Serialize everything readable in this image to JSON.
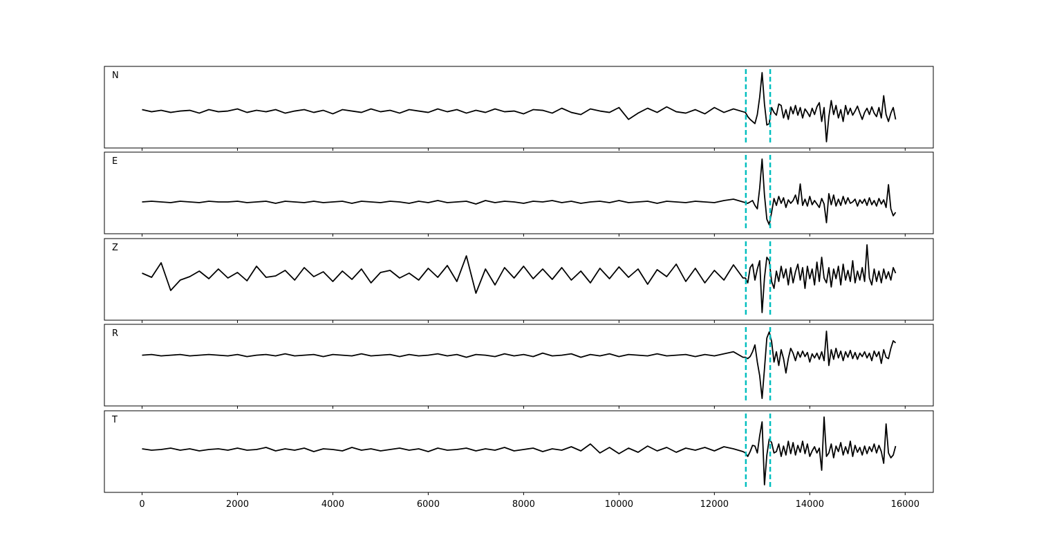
{
  "chart_data": {
    "type": "line",
    "x": [
      0,
      200,
      400,
      600,
      800,
      1000,
      1200,
      1400,
      1600,
      1800,
      2000,
      2200,
      2400,
      2600,
      2800,
      3000,
      3200,
      3400,
      3600,
      3800,
      4000,
      4200,
      4400,
      4600,
      4800,
      5000,
      5200,
      5400,
      5600,
      5800,
      6000,
      6200,
      6400,
      6600,
      6800,
      7000,
      7200,
      7400,
      7600,
      7800,
      8000,
      8200,
      8400,
      8600,
      8800,
      9000,
      9200,
      9400,
      9600,
      9800,
      10000,
      10200,
      10400,
      10600,
      10800,
      11000,
      11200,
      11400,
      11600,
      11800,
      12000,
      12200,
      12400,
      12600,
      12650,
      12700,
      12750,
      12800,
      12850,
      12900,
      12950,
      13000,
      13050,
      13100,
      13150,
      13200,
      13250,
      13300,
      13350,
      13400,
      13450,
      13500,
      13550,
      13600,
      13650,
      13700,
      13750,
      13800,
      13850,
      13900,
      13950,
      14000,
      14050,
      14100,
      14150,
      14200,
      14250,
      14300,
      14350,
      14400,
      14450,
      14500,
      14550,
      14600,
      14650,
      14700,
      14750,
      14800,
      14850,
      14900,
      14950,
      15000,
      15050,
      15100,
      15150,
      15200,
      15250,
      15300,
      15350,
      15400,
      15450,
      15500,
      15550,
      15600,
      15650,
      15700,
      15750,
      15800
    ],
    "xlim": [
      -790,
      16590
    ],
    "xticks": [
      0,
      2000,
      4000,
      6000,
      8000,
      10000,
      12000,
      14000,
      16000
    ],
    "vlines": {
      "values": [
        12660,
        13170
      ],
      "color": "#00bfbf"
    },
    "series": [
      {
        "name": "N",
        "color": "#000000",
        "ylim": [
          -53,
          64
        ],
        "values": [
          2,
          -1,
          1,
          -2,
          0,
          1,
          -3,
          2,
          -1,
          0,
          3,
          -2,
          1,
          -1,
          2,
          -3,
          0,
          2,
          -2,
          1,
          -4,
          2,
          0,
          -2,
          3,
          -1,
          1,
          -3,
          2,
          0,
          -2,
          3,
          -1,
          2,
          -3,
          1,
          -2,
          3,
          -1,
          0,
          -4,
          2,
          1,
          -3,
          4,
          -2,
          -5,
          3,
          0,
          -2,
          5,
          -12,
          -3,
          4,
          -2,
          6,
          -1,
          -3,
          2,
          -4,
          5,
          -2,
          3,
          -1,
          -2,
          -8,
          -12,
          -15,
          -18,
          -5,
          20,
          55,
          10,
          -20,
          -18,
          5,
          -2,
          -6,
          10,
          8,
          -10,
          2,
          -12,
          6,
          -4,
          8,
          -6,
          5,
          -10,
          3,
          -2,
          -8,
          4,
          -5,
          6,
          12,
          -15,
          5,
          -44,
          -8,
          15,
          -5,
          8,
          -10,
          2,
          -15,
          8,
          -5,
          4,
          -6,
          0,
          7,
          -3,
          -12,
          -2,
          4,
          -5,
          6,
          -3,
          -8,
          5,
          -10,
          22,
          -5,
          -15,
          -3,
          5,
          -12
        ]
      },
      {
        "name": "E",
        "color": "#000000",
        "ylim": [
          -46,
          72
        ],
        "values": [
          0,
          1,
          0,
          -1,
          1,
          0,
          -1,
          1,
          0,
          0,
          1,
          -1,
          0,
          1,
          -2,
          1,
          0,
          -1,
          1,
          -1,
          0,
          1,
          -2,
          1,
          0,
          -1,
          1,
          0,
          -2,
          1,
          -1,
          2,
          -1,
          0,
          1,
          -3,
          2,
          -1,
          1,
          0,
          -2,
          1,
          0,
          2,
          -1,
          1,
          -2,
          0,
          1,
          -1,
          2,
          -1,
          0,
          1,
          -2,
          1,
          0,
          -1,
          1,
          0,
          -1,
          2,
          4,
          0,
          -1,
          -2,
          0,
          2,
          -5,
          -10,
          20,
          62,
          10,
          -25,
          -33,
          -15,
          5,
          -5,
          8,
          -2,
          6,
          -8,
          3,
          -2,
          2,
          10,
          -3,
          26,
          -5,
          4,
          -6,
          8,
          -4,
          2,
          -3,
          -8,
          5,
          -3,
          -30,
          12,
          -4,
          10,
          -6,
          4,
          -5,
          8,
          -3,
          6,
          -2,
          0,
          4,
          -6,
          3,
          -2,
          4,
          -5,
          6,
          -4,
          2,
          -6,
          5,
          -3,
          3,
          -8,
          25,
          -10,
          -20,
          -15
        ]
      },
      {
        "name": "Z",
        "color": "#000000",
        "ylim": [
          -66,
          52
        ],
        "values": [
          2,
          -4,
          17,
          -23,
          -8,
          -3,
          5,
          -6,
          8,
          -5,
          3,
          -9,
          12,
          -4,
          -2,
          6,
          -8,
          10,
          -3,
          4,
          -10,
          5,
          -7,
          8,
          -12,
          3,
          6,
          -5,
          2,
          -8,
          9,
          -4,
          13,
          -10,
          27,
          -27,
          8,
          -15,
          10,
          -5,
          12,
          -6,
          8,
          -7,
          10,
          -8,
          5,
          -12,
          9,
          -6,
          11,
          -4,
          8,
          -14,
          7,
          -3,
          15,
          -10,
          9,
          -12,
          6,
          -8,
          14,
          -5,
          -5,
          -12,
          10,
          15,
          -8,
          8,
          20,
          -55,
          -5,
          25,
          20,
          -10,
          -20,
          5,
          -10,
          12,
          -5,
          8,
          -15,
          10,
          -12,
          4,
          15,
          -8,
          10,
          -20,
          12,
          -6,
          8,
          -15,
          18,
          -10,
          25,
          -5,
          -12,
          10,
          -18,
          8,
          -6,
          12,
          -15,
          15,
          -8,
          6,
          -10,
          20,
          -12,
          5,
          -8,
          10,
          -10,
          43,
          -5,
          -15,
          8,
          -10,
          5,
          -12,
          8,
          -6,
          4,
          -8,
          10,
          2
        ]
      },
      {
        "name": "R",
        "color": "#000000",
        "ylim": [
          -74,
          45
        ],
        "values": [
          0,
          1,
          -1,
          0,
          1,
          -1,
          0,
          1,
          0,
          -1,
          1,
          -2,
          0,
          1,
          -1,
          2,
          -1,
          0,
          1,
          -2,
          1,
          0,
          -1,
          2,
          -1,
          0,
          1,
          -2,
          1,
          -1,
          0,
          2,
          -1,
          1,
          -3,
          1,
          0,
          -2,
          2,
          -1,
          1,
          -2,
          3,
          -1,
          0,
          2,
          -3,
          1,
          -1,
          2,
          -2,
          1,
          0,
          -1,
          2,
          -1,
          0,
          1,
          -2,
          1,
          -1,
          2,
          5,
          -3,
          -3,
          -5,
          -2,
          5,
          15,
          -10,
          -30,
          -63,
          -20,
          25,
          34,
          20,
          -10,
          5,
          -15,
          8,
          -5,
          -26,
          -5,
          10,
          3,
          -8,
          5,
          -3,
          6,
          -2,
          4,
          -10,
          2,
          -4,
          3,
          -6,
          5,
          -8,
          35,
          -15,
          8,
          -6,
          10,
          -4,
          6,
          -8,
          5,
          -3,
          7,
          -5,
          4,
          -6,
          3,
          -2,
          5,
          -4,
          3,
          -8,
          6,
          -2,
          5,
          -12,
          8,
          -3,
          -5,
          10,
          21,
          18
        ]
      },
      {
        "name": "T",
        "color": "#000000",
        "ylim": [
          -62,
          56
        ],
        "values": [
          1,
          -1,
          0,
          2,
          -1,
          1,
          -2,
          0,
          1,
          -1,
          2,
          -1,
          0,
          3,
          -2,
          1,
          -1,
          2,
          -3,
          1,
          0,
          -2,
          3,
          -1,
          1,
          -2,
          0,
          2,
          -1,
          1,
          -3,
          2,
          -1,
          0,
          2,
          -2,
          1,
          -1,
          3,
          -2,
          0,
          2,
          -3,
          1,
          -1,
          4,
          -2,
          8,
          -5,
          3,
          -6,
          2,
          -4,
          5,
          -2,
          3,
          -4,
          2,
          -1,
          3,
          -2,
          4,
          1,
          -3,
          -5,
          -10,
          -3,
          6,
          5,
          -5,
          20,
          40,
          -51,
          -8,
          15,
          10,
          -5,
          -3,
          8,
          -10,
          5,
          -8,
          12,
          -6,
          10,
          -8,
          6,
          -4,
          12,
          -6,
          8,
          -10,
          -2,
          4,
          -5,
          2,
          -30,
          47,
          -10,
          -5,
          8,
          -12,
          5,
          -3,
          10,
          -8,
          4,
          -6,
          12,
          -10,
          6,
          -4,
          3,
          -8,
          5,
          -6,
          4,
          -3,
          8,
          -5,
          6,
          -3,
          -20,
          37,
          -5,
          -12,
          -8,
          5
        ]
      }
    ]
  }
}
